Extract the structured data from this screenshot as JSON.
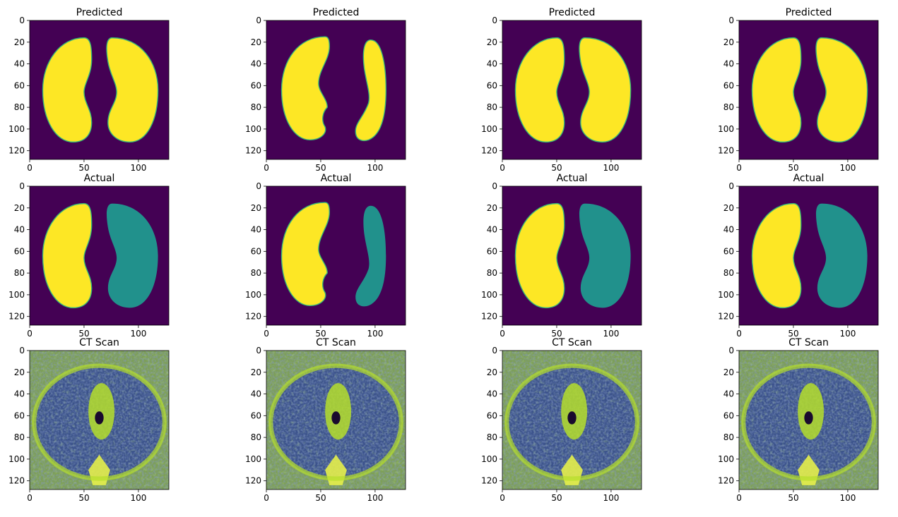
{
  "figure": {
    "colors": {
      "background_low": "#440154",
      "edge": "#35b779",
      "mask_high": "#fde725",
      "mask_mid": "#21918c",
      "ct_dark": "#3b528b",
      "ct_bright": "#b5de2b",
      "axis": "#000000"
    }
  },
  "chart_data": [
    {
      "panel": "r0c0",
      "type": "heatmap",
      "title": "Predicted",
      "xticks": [
        0,
        50,
        100
      ],
      "yticks": [
        0,
        20,
        40,
        60,
        80,
        100,
        120
      ],
      "xlim": [
        0,
        128
      ],
      "ylim": [
        128,
        0
      ],
      "colormap": "viridis"
    },
    {
      "panel": "r0c1",
      "type": "heatmap",
      "title": "Predicted",
      "xticks": [
        0,
        50,
        100
      ],
      "yticks": [
        0,
        20,
        40,
        60,
        80,
        100,
        120
      ],
      "xlim": [
        0,
        128
      ],
      "ylim": [
        128,
        0
      ],
      "colormap": "viridis"
    },
    {
      "panel": "r0c2",
      "type": "heatmap",
      "title": "Predicted",
      "xticks": [
        0,
        50,
        100
      ],
      "yticks": [
        0,
        20,
        40,
        60,
        80,
        100,
        120
      ],
      "xlim": [
        0,
        128
      ],
      "ylim": [
        128,
        0
      ],
      "colormap": "viridis"
    },
    {
      "panel": "r0c3",
      "type": "heatmap",
      "title": "Predicted",
      "xticks": [
        0,
        50,
        100
      ],
      "yticks": [
        0,
        20,
        40,
        60,
        80,
        100,
        120
      ],
      "xlim": [
        0,
        128
      ],
      "ylim": [
        128,
        0
      ],
      "colormap": "viridis"
    },
    {
      "panel": "r1c0",
      "type": "heatmap",
      "title": "Actual",
      "xticks": [
        0,
        50,
        100
      ],
      "yticks": [
        0,
        20,
        40,
        60,
        80,
        100,
        120
      ],
      "xlim": [
        0,
        128
      ],
      "ylim": [
        128,
        0
      ],
      "colormap": "viridis"
    },
    {
      "panel": "r1c1",
      "type": "heatmap",
      "title": "Actual",
      "xticks": [
        0,
        50,
        100
      ],
      "yticks": [
        0,
        20,
        40,
        60,
        80,
        100,
        120
      ],
      "xlim": [
        0,
        128
      ],
      "ylim": [
        128,
        0
      ],
      "colormap": "viridis"
    },
    {
      "panel": "r1c2",
      "type": "heatmap",
      "title": "Actual",
      "xticks": [
        0,
        50,
        100
      ],
      "yticks": [
        0,
        20,
        40,
        60,
        80,
        100,
        120
      ],
      "xlim": [
        0,
        128
      ],
      "ylim": [
        128,
        0
      ],
      "colormap": "viridis"
    },
    {
      "panel": "r1c3",
      "type": "heatmap",
      "title": "Actual",
      "xticks": [
        0,
        50,
        100
      ],
      "yticks": [
        0,
        20,
        40,
        60,
        80,
        100,
        120
      ],
      "xlim": [
        0,
        128
      ],
      "ylim": [
        128,
        0
      ],
      "colormap": "viridis"
    },
    {
      "panel": "r2c0",
      "type": "heatmap",
      "title": "CT Scan",
      "xticks": [
        0,
        50,
        100
      ],
      "yticks": [
        0,
        20,
        40,
        60,
        80,
        100,
        120
      ],
      "xlim": [
        0,
        128
      ],
      "ylim": [
        128,
        0
      ],
      "colormap": "viridis"
    },
    {
      "panel": "r2c1",
      "type": "heatmap",
      "title": "CT Scan",
      "xticks": [
        0,
        50,
        100
      ],
      "yticks": [
        0,
        20,
        40,
        60,
        80,
        100,
        120
      ],
      "xlim": [
        0,
        128
      ],
      "ylim": [
        128,
        0
      ],
      "colormap": "viridis"
    },
    {
      "panel": "r2c2",
      "type": "heatmap",
      "title": "CT Scan",
      "xticks": [
        0,
        50,
        100
      ],
      "yticks": [
        0,
        20,
        40,
        60,
        80,
        100,
        120
      ],
      "xlim": [
        0,
        128
      ],
      "ylim": [
        128,
        0
      ],
      "colormap": "viridis"
    },
    {
      "panel": "r2c3",
      "type": "heatmap",
      "title": "CT Scan",
      "xticks": [
        0,
        50,
        100
      ],
      "yticks": [
        0,
        20,
        40,
        60,
        80,
        100,
        120
      ],
      "xlim": [
        0,
        128
      ],
      "ylim": [
        128,
        0
      ],
      "colormap": "viridis"
    }
  ]
}
